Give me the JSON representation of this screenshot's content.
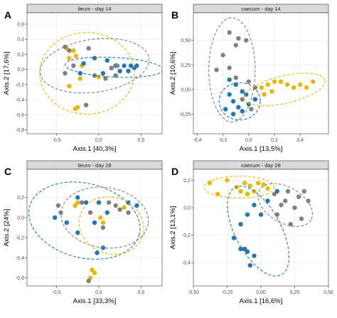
{
  "colors": {
    "yellow": "#e8b800",
    "blue": "#1f77b4",
    "grey": "#808080",
    "strip": "#d9d9d9",
    "panel_bg": "#ffffff",
    "grid": "#ebebeb"
  },
  "chart_data": [
    {
      "type": "scatter",
      "letter": "A",
      "title": "ileum - day 14",
      "xlabel": "Axis.1   [40,3%]",
      "ylabel": "Axis.2   [17,6%]",
      "xlim": [
        -0.85,
        0.75
      ],
      "ylim": [
        -0.85,
        0.75
      ],
      "xticks": [
        -0.5,
        0.0,
        0.5
      ],
      "xticklabels": [
        "-0,5",
        "0,0",
        "0,5"
      ],
      "yticks": [
        -0.8,
        -0.6,
        -0.4,
        -0.2,
        0.0,
        0.2,
        0.4,
        0.6
      ],
      "yticklabels": [
        "-0,8",
        "-0,6",
        "-0,4",
        "-0,2",
        "0,0",
        "0,2",
        "0,4",
        "0,6"
      ],
      "grid": true,
      "series": [
        {
          "color": "yellow",
          "points": [
            [
              -0.38,
              0.28
            ],
            [
              -0.3,
              0.25
            ],
            [
              -0.35,
              0.15
            ],
            [
              -0.27,
              0.18
            ],
            [
              -0.2,
              0.05
            ],
            [
              -0.35,
              -0.22
            ],
            [
              -0.22,
              -0.12
            ],
            [
              0.0,
              -0.1
            ],
            [
              -0.25,
              -0.5
            ],
            [
              -0.28,
              -0.52
            ],
            [
              0.15,
              0.02
            ]
          ]
        },
        {
          "color": "blue",
          "points": [
            [
              -0.05,
              0.15
            ],
            [
              0.1,
              0.12
            ],
            [
              0.2,
              0.05
            ],
            [
              0.3,
              0.05
            ],
            [
              0.38,
              0.05
            ],
            [
              0.42,
              0.02
            ],
            [
              0.35,
              -0.02
            ],
            [
              0.25,
              -0.02
            ],
            [
              0.05,
              -0.05
            ],
            [
              -0.05,
              -0.08
            ],
            [
              -0.22,
              -0.05
            ],
            [
              -0.18,
              0.08
            ],
            [
              0.45,
              0.05
            ]
          ]
        },
        {
          "color": "grey",
          "points": [
            [
              -0.4,
              0.3
            ],
            [
              -0.35,
              0.25
            ],
            [
              -0.12,
              0.28
            ],
            [
              -0.3,
              0.05
            ],
            [
              -0.4,
              -0.05
            ],
            [
              0.15,
              0.02
            ],
            [
              0.22,
              0.05
            ],
            [
              0.2,
              -0.08
            ],
            [
              0.08,
              -0.12
            ],
            [
              -0.15,
              -0.47
            ],
            [
              -0.05,
              -0.08
            ]
          ]
        }
      ],
      "ellipses": [
        {
          "color": "yellow",
          "cx": -0.14,
          "cy": -0.05,
          "rx": 0.56,
          "ry": 0.54,
          "angle": 0
        },
        {
          "color": "grey",
          "cx": -0.05,
          "cy": 0.05,
          "rx": 0.65,
          "ry": 0.35,
          "angle": 8
        },
        {
          "color": "blue",
          "cx": 0.18,
          "cy": 0.03,
          "rx": 0.58,
          "ry": 0.13,
          "angle": -3
        }
      ]
    },
    {
      "type": "scatter",
      "letter": "B",
      "title": "caecum - day 14",
      "xlabel": "Axis.1   [13,5%]",
      "ylabel": "Axis.2   [10,6%]",
      "xlim": [
        -0.43,
        0.62
      ],
      "ylim": [
        -0.45,
        0.78
      ],
      "xticks": [
        -0.4,
        -0.2,
        0.0,
        0.2,
        0.4
      ],
      "xticklabels": [
        "-0,4",
        "-0,2",
        "0,0",
        "0,2",
        "0,4"
      ],
      "yticks": [
        -0.25,
        0.0,
        0.25,
        0.5
      ],
      "yticklabels": [
        "-0,25",
        "0,00",
        "0,25",
        "0,50"
      ],
      "grid": true,
      "series": [
        {
          "color": "yellow",
          "points": [
            [
              0.1,
              0.02
            ],
            [
              0.15,
              0.05
            ],
            [
              0.2,
              0.08
            ],
            [
              0.25,
              0.08
            ],
            [
              0.3,
              0.05
            ],
            [
              0.35,
              0.02
            ],
            [
              0.4,
              0.05
            ],
            [
              0.45,
              0.02
            ],
            [
              0.5,
              0.08
            ],
            [
              0.12,
              -0.05
            ],
            [
              0.18,
              -0.02
            ]
          ]
        },
        {
          "color": "blue",
          "points": [
            [
              -0.15,
              0.1
            ],
            [
              -0.1,
              0.05
            ],
            [
              -0.05,
              -0.02
            ],
            [
              -0.15,
              -0.05
            ],
            [
              -0.12,
              -0.12
            ],
            [
              -0.08,
              -0.18
            ],
            [
              -0.18,
              -0.2
            ],
            [
              -0.05,
              -0.22
            ],
            [
              0.0,
              -0.15
            ],
            [
              0.05,
              -0.1
            ],
            [
              -0.02,
              -0.05
            ],
            [
              -0.12,
              -0.25
            ]
          ]
        },
        {
          "color": "grey",
          "points": [
            [
              -0.15,
              0.58
            ],
            [
              -0.08,
              0.52
            ],
            [
              -0.02,
              0.5
            ],
            [
              -0.1,
              0.45
            ],
            [
              -0.2,
              0.35
            ],
            [
              -0.25,
              0.2
            ],
            [
              -0.15,
              0.22
            ],
            [
              -0.1,
              0.12
            ],
            [
              0.0,
              0.08
            ],
            [
              0.05,
              0.02
            ],
            [
              -0.05,
              -0.1
            ],
            [
              0.02,
              -0.2
            ]
          ]
        }
      ],
      "ellipses": [
        {
          "color": "grey",
          "cx": -0.13,
          "cy": 0.2,
          "rx": 0.18,
          "ry": 0.53,
          "angle": 0
        },
        {
          "color": "blue",
          "cx": -0.07,
          "cy": -0.12,
          "rx": 0.16,
          "ry": 0.19,
          "angle": 0
        },
        {
          "color": "yellow",
          "cx": 0.28,
          "cy": 0.0,
          "rx": 0.32,
          "ry": 0.14,
          "angle": 13
        }
      ]
    },
    {
      "type": "scatter",
      "letter": "C",
      "title": "ileum - day 28",
      "xlabel": "Axis.1   [33,3%]",
      "ylabel": "Axis.2   [24%]",
      "xlim": [
        -0.85,
        0.75
      ],
      "ylim": [
        -0.68,
        0.48
      ],
      "xticks": [
        -0.5,
        0.0,
        0.5
      ],
      "xticklabels": [
        "-0,5",
        "0,0",
        "0,5"
      ],
      "yticks": [
        -0.6,
        -0.4,
        -0.2,
        0.0,
        0.2
      ],
      "yticklabels": [
        "-0,6",
        "-0,4",
        "-0,2",
        "0,0",
        "0,2"
      ],
      "grid": true,
      "series": [
        {
          "color": "yellow",
          "points": [
            [
              -0.25,
              0.15
            ],
            [
              -0.28,
              0.12
            ],
            [
              -0.1,
              0.05
            ],
            [
              0.02,
              0.0
            ],
            [
              0.05,
              -0.05
            ],
            [
              0.3,
              0.1
            ],
            [
              -0.05,
              -0.55
            ],
            [
              -0.1,
              -0.6
            ],
            [
              -0.08,
              -0.52
            ]
          ]
        },
        {
          "color": "blue",
          "points": [
            [
              -0.25,
              0.2
            ],
            [
              -0.15,
              0.15
            ],
            [
              0.0,
              0.15
            ],
            [
              0.35,
              0.15
            ],
            [
              0.45,
              0.12
            ],
            [
              0.1,
              0.05
            ],
            [
              -0.05,
              -0.05
            ],
            [
              -0.25,
              -0.15
            ],
            [
              -0.38,
              -0.05
            ],
            [
              -0.52,
              0.0
            ],
            [
              0.05,
              -0.3
            ],
            [
              -0.02,
              -0.35
            ]
          ]
        },
        {
          "color": "grey",
          "points": [
            [
              -0.48,
              0.12
            ],
            [
              -0.2,
              0.15
            ],
            [
              0.12,
              0.15
            ],
            [
              0.2,
              0.12
            ],
            [
              0.25,
              0.08
            ],
            [
              -0.1,
              0.05
            ],
            [
              -0.45,
              0.05
            ],
            [
              0.05,
              -0.1
            ],
            [
              0.35,
              0.05
            ],
            [
              -0.12,
              -0.63
            ]
          ]
        }
      ],
      "ellipses": [
        {
          "color": "blue",
          "cx": -0.17,
          "cy": -0.03,
          "rx": 0.67,
          "ry": 0.37,
          "angle": -14
        },
        {
          "color": "grey",
          "cx": 0.07,
          "cy": 0.0,
          "rx": 0.52,
          "ry": 0.3,
          "angle": -8
        },
        {
          "color": "yellow",
          "cx": 0.15,
          "cy": -0.08,
          "rx": 0.39,
          "ry": 0.28,
          "angle": -20
        }
      ]
    },
    {
      "type": "scatter",
      "letter": "D",
      "title": "caecum - day 28",
      "xlabel": "Axis.1   [16,6%]",
      "ylabel": "Axis.2   [13,1%]",
      "xlim": [
        -0.5,
        0.5
      ],
      "ylim": [
        -0.57,
        0.28
      ],
      "xticks": [
        -0.5,
        -0.25,
        0.0,
        0.25,
        0.5
      ],
      "xticklabels": [
        "-0,50",
        "-0,25",
        "0,00",
        "0,25",
        "0,50"
      ],
      "yticks": [
        -0.6,
        -0.4,
        -0.2,
        0.0,
        0.2
      ],
      "yticklabels": [
        "-0,6",
        "-0,4",
        "-0,2",
        "0,0",
        "0,2"
      ],
      "grid": true,
      "series": [
        {
          "color": "yellow",
          "points": [
            [
              -0.38,
              0.18
            ],
            [
              -0.32,
              0.1
            ],
            [
              -0.25,
              0.2
            ],
            [
              -0.18,
              0.15
            ],
            [
              -0.12,
              0.18
            ],
            [
              -0.08,
              0.16
            ],
            [
              -0.05,
              0.12
            ],
            [
              -0.15,
              0.12
            ],
            [
              -0.02,
              0.18
            ],
            [
              0.02,
              0.17
            ],
            [
              0.05,
              0.14
            ],
            [
              -0.1,
              0.1
            ]
          ]
        },
        {
          "color": "blue",
          "points": [
            [
              0.12,
              0.12
            ],
            [
              0.05,
              0.05
            ],
            [
              -0.05,
              0.02
            ],
            [
              -0.1,
              -0.05
            ],
            [
              -0.15,
              -0.12
            ],
            [
              -0.2,
              -0.22
            ],
            [
              -0.12,
              -0.3
            ],
            [
              -0.1,
              -0.32
            ],
            [
              -0.05,
              -0.35
            ],
            [
              -0.08,
              -0.42
            ],
            [
              -0.15,
              -0.3
            ],
            [
              0.0,
              -0.05
            ]
          ]
        },
        {
          "color": "grey",
          "points": [
            [
              0.1,
              0.1
            ],
            [
              0.2,
              0.12
            ],
            [
              0.28,
              0.08
            ],
            [
              0.35,
              0.05
            ],
            [
              0.15,
              0.02
            ],
            [
              0.25,
              0.0
            ],
            [
              0.12,
              -0.05
            ],
            [
              0.3,
              -0.08
            ],
            [
              0.22,
              -0.12
            ],
            [
              0.18,
              0.05
            ],
            [
              0.32,
              0.12
            ]
          ]
        }
      ],
      "ellipses": [
        {
          "color": "yellow",
          "cx": -0.16,
          "cy": 0.15,
          "rx": 0.26,
          "ry": 0.08,
          "angle": 0
        },
        {
          "color": "grey",
          "cx": 0.18,
          "cy": 0.02,
          "rx": 0.22,
          "ry": 0.13,
          "angle": -30
        },
        {
          "color": "blue",
          "cx": -0.02,
          "cy": -0.17,
          "rx": 0.17,
          "ry": 0.36,
          "angle": 28
        }
      ]
    }
  ]
}
